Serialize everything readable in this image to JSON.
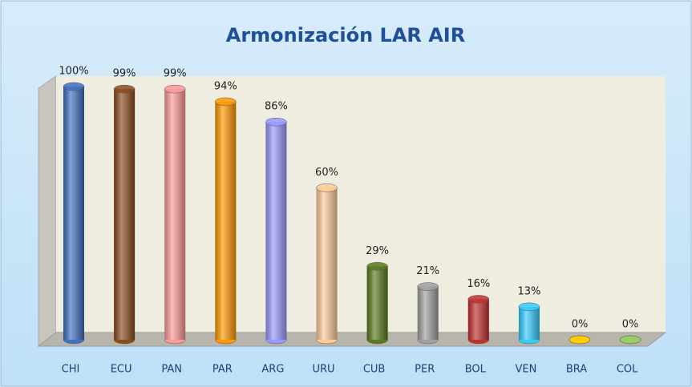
{
  "chart_data": {
    "type": "bar",
    "title": "Armonización LAR AIR",
    "categories": [
      "CHI",
      "ECU",
      "PAN",
      "PAR",
      "ARG",
      "URU",
      "CUB",
      "PER",
      "BOL",
      "VEN",
      "BRA",
      "COL"
    ],
    "values": [
      100,
      99,
      99,
      94,
      86,
      60,
      29,
      21,
      16,
      13,
      0,
      0
    ],
    "value_labels": [
      "100%",
      "99%",
      "99%",
      "94%",
      "86%",
      "60%",
      "29%",
      "21%",
      "16%",
      "13%",
      "0%",
      "0%"
    ],
    "colors": [
      "#3f6fc0",
      "#8b4a1f",
      "#ff9999",
      "#ff9900",
      "#9999ff",
      "#ffcc99",
      "#5a7a1e",
      "#a0a0a0",
      "#c0302f",
      "#33ccff",
      "#ffcc00",
      "#99cc66"
    ],
    "ylim": [
      0,
      100
    ]
  }
}
